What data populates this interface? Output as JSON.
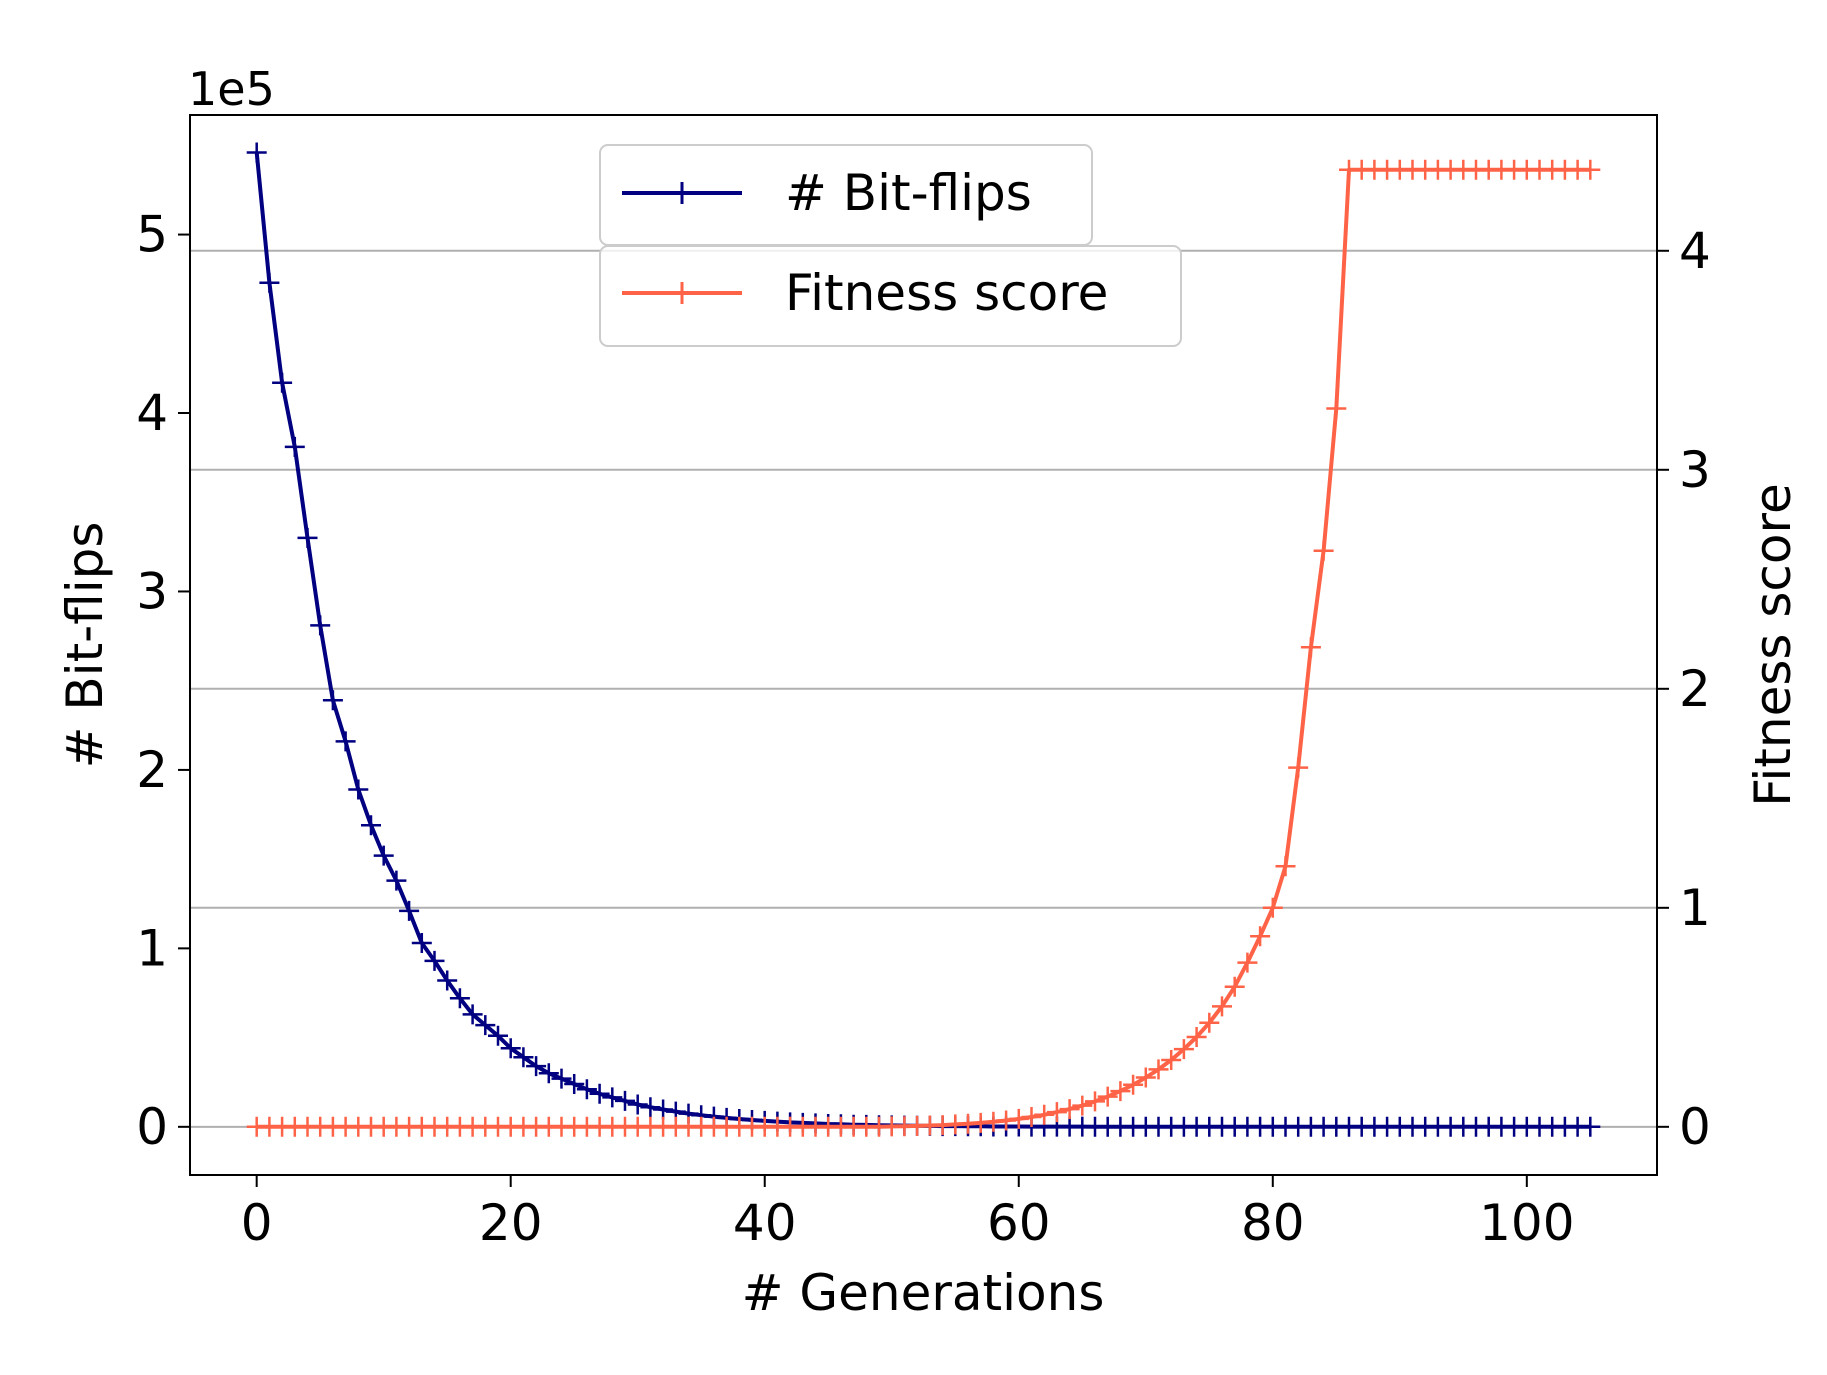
{
  "chart_data": {
    "type": "line",
    "xlabel": "# Generations",
    "ylabel_left": "# Bit-flips",
    "ylabel_right": "Fitness score",
    "left_axis_multiplier": "1e5",
    "xlim": [
      -5.25,
      110.25
    ],
    "ylim_left": [
      -0.27,
      5.67
    ],
    "ylim_right": [
      -0.22,
      4.62
    ],
    "x_ticks": [
      0,
      20,
      40,
      60,
      80,
      100
    ],
    "x_tick_labels": [
      "0",
      "20",
      "40",
      "60",
      "80",
      "100"
    ],
    "y_left_ticks": [
      0,
      1,
      2,
      3,
      4,
      5
    ],
    "y_left_tick_labels": [
      "0",
      "1",
      "2",
      "3",
      "4",
      "5"
    ],
    "y_right_ticks": [
      0,
      1,
      2,
      3,
      4
    ],
    "y_right_tick_labels": [
      "0",
      "1",
      "2",
      "3",
      "4"
    ],
    "grid": "horizontal gridlines on right axis ticks",
    "legend_position": "top-center",
    "series": [
      {
        "name": "# Bit-flips",
        "axis": "left",
        "color": "#000080",
        "marker": "+",
        "x_start": 0,
        "x_step": 1,
        "values": [
          5.46,
          4.73,
          4.17,
          3.81,
          3.3,
          2.81,
          2.39,
          2.16,
          1.89,
          1.69,
          1.52,
          1.38,
          1.21,
          1.03,
          0.93,
          0.82,
          0.72,
          0.63,
          0.57,
          0.51,
          0.44,
          0.39,
          0.34,
          0.3,
          0.27,
          0.24,
          0.21,
          0.185,
          0.165,
          0.145,
          0.125,
          0.11,
          0.097,
          0.085,
          0.074,
          0.065,
          0.057,
          0.05,
          0.044,
          0.038,
          0.033,
          0.029,
          0.025,
          0.022,
          0.019,
          0.016,
          0.014,
          0.012,
          0.011,
          0.009,
          0.008,
          0.007,
          0.006,
          0.005,
          0.004,
          0.004,
          0.003,
          0.003,
          0.002,
          0.002,
          0.002,
          0.001,
          0.001,
          0.001,
          0.001,
          0.001,
          0,
          0,
          0,
          0,
          0,
          0,
          0,
          0,
          0,
          0,
          0,
          0,
          0,
          0,
          0,
          0,
          0,
          0,
          0,
          0,
          0,
          0,
          0,
          0,
          0,
          0,
          0,
          0,
          0,
          0,
          0,
          0,
          0,
          0,
          0,
          0,
          0,
          0,
          0,
          0
        ]
      },
      {
        "name": "Fitness score",
        "axis": "right",
        "color": "#ff6347",
        "marker": "+",
        "x_start": 0,
        "x_step": 1,
        "values": [
          0,
          0,
          0,
          0,
          0,
          0,
          0,
          0,
          0,
          0,
          0,
          0,
          0,
          0,
          0,
          0,
          0,
          0,
          0,
          0,
          0,
          0,
          0,
          0,
          0,
          0,
          0,
          0,
          0,
          0,
          0,
          0,
          0,
          0,
          0,
          0,
          0,
          0,
          0,
          0,
          0,
          0,
          0,
          0,
          0,
          0,
          0,
          0,
          0,
          0,
          0.002,
          0.003,
          0.004,
          0.006,
          0.008,
          0.011,
          0.014,
          0.018,
          0.023,
          0.029,
          0.036,
          0.045,
          0.055,
          0.067,
          0.081,
          0.097,
          0.116,
          0.138,
          0.163,
          0.192,
          0.225,
          0.262,
          0.305,
          0.355,
          0.41,
          0.475,
          0.55,
          0.64,
          0.75,
          0.87,
          1.0,
          1.19,
          1.64,
          2.19,
          2.63,
          3.28,
          4.37,
          4.37,
          4.37,
          4.37,
          4.37,
          4.37,
          4.37,
          4.37,
          4.37,
          4.37,
          4.37,
          4.37,
          4.37,
          4.37,
          4.37,
          4.37,
          4.37,
          4.37,
          4.37,
          4.37
        ]
      }
    ]
  }
}
